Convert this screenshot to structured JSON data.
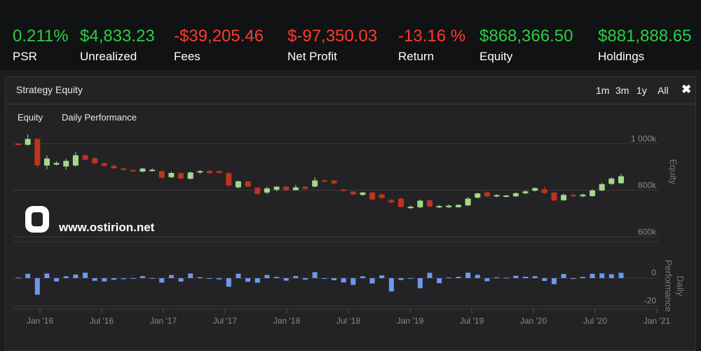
{
  "stats": [
    {
      "value": "0.211%",
      "label": "PSR",
      "color": "green"
    },
    {
      "value": "$4,833.23",
      "label": "Unrealized",
      "color": "green"
    },
    {
      "value": "-$39,205.46",
      "label": "Fees",
      "color": "red"
    },
    {
      "value": "$-97,350.03",
      "label": "Net Profit",
      "color": "red"
    },
    {
      "value": "-13.16 %",
      "label": "Return",
      "color": "red"
    },
    {
      "value": "$868,366.50",
      "label": "Equity",
      "color": "green"
    },
    {
      "value": "$881,888.65",
      "label": "Holdings",
      "color": "green"
    }
  ],
  "panel": {
    "title": "Strategy Equity",
    "ranges": [
      "1m",
      "3m",
      "1y",
      "All"
    ],
    "legend": [
      "Equity",
      "Daily Performance"
    ]
  },
  "watermark": {
    "text": "www.ostirion.net"
  },
  "colors": {
    "up": "#a3d98c",
    "down": "#c0331c",
    "bar": "#6e98f0",
    "grid": "#3a3a3f",
    "axis_text": "#888888"
  },
  "chart_data": [
    {
      "type": "candlestick",
      "title": "",
      "ylabel": "Equity",
      "ylim": [
        600000,
        1000000
      ],
      "yticks": [
        "1 000k",
        "800k",
        "600k"
      ],
      "ytick_values": [
        1000000,
        800000,
        600000
      ],
      "xticks": [
        "Jan '16",
        "Jul '16",
        "Jan '17",
        "Jul '17",
        "Jan '18",
        "Jul '18",
        "Jan '19",
        "Jul '19",
        "Jan '20",
        "Jul '20",
        "Jan '21"
      ],
      "series": [
        {
          "o": 1000000,
          "c": 995000,
          "h": 1003000,
          "l": 992000
        },
        {
          "o": 995000,
          "c": 1020000,
          "h": 1040000,
          "l": 990000
        },
        {
          "o": 1020000,
          "c": 906000,
          "h": 1022000,
          "l": 894000
        },
        {
          "o": 906000,
          "c": 936000,
          "h": 950000,
          "l": 890000
        },
        {
          "o": 910000,
          "c": 917000,
          "h": 924000,
          "l": 906000
        },
        {
          "o": 902000,
          "c": 926000,
          "h": 935000,
          "l": 888000
        },
        {
          "o": 906000,
          "c": 950000,
          "h": 964000,
          "l": 902000
        },
        {
          "o": 950000,
          "c": 931000,
          "h": 956000,
          "l": 926000
        },
        {
          "o": 937000,
          "c": 916000,
          "h": 944000,
          "l": 910000
        },
        {
          "o": 916000,
          "c": 905000,
          "h": 920000,
          "l": 900000
        },
        {
          "o": 905000,
          "c": 894000,
          "h": 908000,
          "l": 890000
        },
        {
          "o": 894000,
          "c": 887000,
          "h": 896000,
          "l": 884000
        },
        {
          "o": 887000,
          "c": 886000,
          "h": 890000,
          "l": 880000
        },
        {
          "o": 880000,
          "c": 893000,
          "h": 896000,
          "l": 876000
        },
        {
          "o": 887000,
          "c": 888000,
          "h": 894000,
          "l": 880000
        },
        {
          "o": 882000,
          "c": 854000,
          "h": 885000,
          "l": 850000
        },
        {
          "o": 856000,
          "c": 874000,
          "h": 879000,
          "l": 851000
        },
        {
          "o": 873000,
          "c": 850000,
          "h": 876000,
          "l": 846000
        },
        {
          "o": 849000,
          "c": 876000,
          "h": 880000,
          "l": 846000
        },
        {
          "o": 876000,
          "c": 882000,
          "h": 887000,
          "l": 870000
        },
        {
          "o": 883000,
          "c": 874000,
          "h": 887000,
          "l": 868000
        },
        {
          "o": 882000,
          "c": 874000,
          "h": 886000,
          "l": 870000
        },
        {
          "o": 874000,
          "c": 820000,
          "h": 878000,
          "l": 815000
        },
        {
          "o": 812000,
          "c": 838000,
          "h": 842000,
          "l": 808000
        },
        {
          "o": 838000,
          "c": 816000,
          "h": 841000,
          "l": 812000
        },
        {
          "o": 811000,
          "c": 784000,
          "h": 815000,
          "l": 781000
        },
        {
          "o": 790000,
          "c": 808000,
          "h": 815000,
          "l": 783000
        },
        {
          "o": 802000,
          "c": 815000,
          "h": 818000,
          "l": 796000
        },
        {
          "o": 815000,
          "c": 800000,
          "h": 818000,
          "l": 796000
        },
        {
          "o": 800000,
          "c": 812000,
          "h": 823000,
          "l": 798000
        },
        {
          "o": 815000,
          "c": 806000,
          "h": 820000,
          "l": 802000
        },
        {
          "o": 816000,
          "c": 842000,
          "h": 855000,
          "l": 812000
        },
        {
          "o": 842000,
          "c": 841000,
          "h": 848000,
          "l": 836000
        },
        {
          "o": 842000,
          "c": 829000,
          "h": 845000,
          "l": 826000
        },
        {
          "o": 803000,
          "c": 797000,
          "h": 806000,
          "l": 794000
        },
        {
          "o": 794000,
          "c": 782000,
          "h": 797000,
          "l": 778000
        },
        {
          "o": 780000,
          "c": 790000,
          "h": 793000,
          "l": 775000
        },
        {
          "o": 790000,
          "c": 760000,
          "h": 793000,
          "l": 756000
        },
        {
          "o": 782000,
          "c": 767000,
          "h": 785000,
          "l": 763000
        },
        {
          "o": 758000,
          "c": 748000,
          "h": 762000,
          "l": 745000
        },
        {
          "o": 764000,
          "c": 728000,
          "h": 768000,
          "l": 726000
        },
        {
          "o": 729000,
          "c": 729000,
          "h": 735000,
          "l": 720000
        },
        {
          "o": 727000,
          "c": 755000,
          "h": 760000,
          "l": 723000
        },
        {
          "o": 757000,
          "c": 730000,
          "h": 760000,
          "l": 726000
        },
        {
          "o": 728000,
          "c": 732000,
          "h": 736000,
          "l": 724000
        },
        {
          "o": 727000,
          "c": 734000,
          "h": 738000,
          "l": 724000
        },
        {
          "o": 727000,
          "c": 737000,
          "h": 740000,
          "l": 725000
        },
        {
          "o": 735000,
          "c": 764000,
          "h": 770000,
          "l": 732000
        },
        {
          "o": 768000,
          "c": 786000,
          "h": 790000,
          "l": 765000
        },
        {
          "o": 791000,
          "c": 774000,
          "h": 795000,
          "l": 770000
        },
        {
          "o": 774000,
          "c": 779000,
          "h": 783000,
          "l": 770000
        },
        {
          "o": 775000,
          "c": 777000,
          "h": 780000,
          "l": 771000
        },
        {
          "o": 774000,
          "c": 787000,
          "h": 791000,
          "l": 770000
        },
        {
          "o": 787000,
          "c": 795000,
          "h": 800000,
          "l": 782000
        },
        {
          "o": 798000,
          "c": 809000,
          "h": 812000,
          "l": 794000
        },
        {
          "o": 804000,
          "c": 788000,
          "h": 818000,
          "l": 783000
        },
        {
          "o": 790000,
          "c": 756000,
          "h": 794000,
          "l": 752000
        },
        {
          "o": 757000,
          "c": 780000,
          "h": 785000,
          "l": 754000
        },
        {
          "o": 780000,
          "c": 775000,
          "h": 786000,
          "l": 770000
        },
        {
          "o": 774000,
          "c": 781000,
          "h": 786000,
          "l": 770000
        },
        {
          "o": 775000,
          "c": 799000,
          "h": 805000,
          "l": 772000
        },
        {
          "o": 799000,
          "c": 826000,
          "h": 832000,
          "l": 795000
        },
        {
          "o": 827000,
          "c": 850000,
          "h": 856000,
          "l": 822000
        },
        {
          "o": 830000,
          "c": 860000,
          "h": 870000,
          "l": 826000
        }
      ]
    },
    {
      "type": "bar",
      "title": "",
      "ylabel": "Daily Performance",
      "ylim": [
        -20,
        10
      ],
      "yticks": [
        "0",
        "-20"
      ],
      "ytick_values": [
        0,
        -20
      ],
      "values": [
        0.4,
        3.1,
        -11.8,
        3.3,
        -2.4,
        1.3,
        2.6,
        3.9,
        -1.9,
        -2.4,
        -1.2,
        -0.7,
        -0.1,
        1.5,
        0.1,
        -3.2,
        2.2,
        -2.5,
        3.3,
        0.7,
        -0.5,
        -0.9,
        -6.1,
        3.2,
        -2.6,
        -3.3,
        2.3,
        0.9,
        -1.8,
        1.5,
        -1.1,
        4.3,
        -0.1,
        -1.5,
        -3.1,
        -4.8,
        1.3,
        -3.8,
        2.0,
        -9.5,
        -1.3,
        0.0,
        -7.2,
        3.8,
        -3.6,
        0.5,
        1.0,
        3.9,
        2.4,
        -2.2,
        0.6,
        0.3,
        1.7,
        1.0,
        1.4,
        -2.0,
        -4.3,
        3.0,
        -0.6,
        0.9,
        3.1,
        3.4,
        2.8,
        3.8
      ]
    }
  ]
}
